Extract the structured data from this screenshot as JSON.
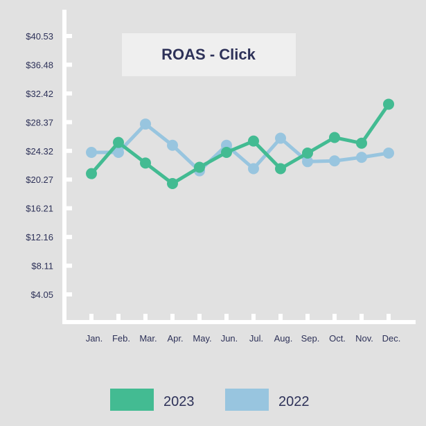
{
  "chart_data": {
    "type": "line",
    "title": "ROAS - Click",
    "xlabel": "",
    "ylabel": "",
    "categories": [
      "Jan.",
      "Feb.",
      "Mar.",
      "Apr.",
      "May.",
      "Jun.",
      "Jul.",
      "Aug.",
      "Sep.",
      "Oct.",
      "Nov.",
      "Dec."
    ],
    "y_ticks": [
      "$4.05",
      "$8.11",
      "$12.16",
      "$16.21",
      "$20.27",
      "$24.32",
      "$28.37",
      "$32.42",
      "$36.48",
      "$40.53"
    ],
    "ylim": [
      0,
      40.53
    ],
    "grid": false,
    "legend_position": "bottom",
    "series": [
      {
        "name": "2023",
        "color": "#43bb92",
        "values": [
          21.1,
          25.5,
          22.6,
          19.7,
          22.0,
          24.1,
          25.7,
          21.8,
          24.0,
          26.2,
          25.4,
          30.9
        ]
      },
      {
        "name": "2022",
        "color": "#98c5df",
        "values": [
          24.1,
          24.1,
          28.1,
          25.1,
          21.5,
          25.1,
          21.8,
          26.1,
          22.8,
          22.9,
          23.4,
          24.0
        ]
      }
    ]
  }
}
